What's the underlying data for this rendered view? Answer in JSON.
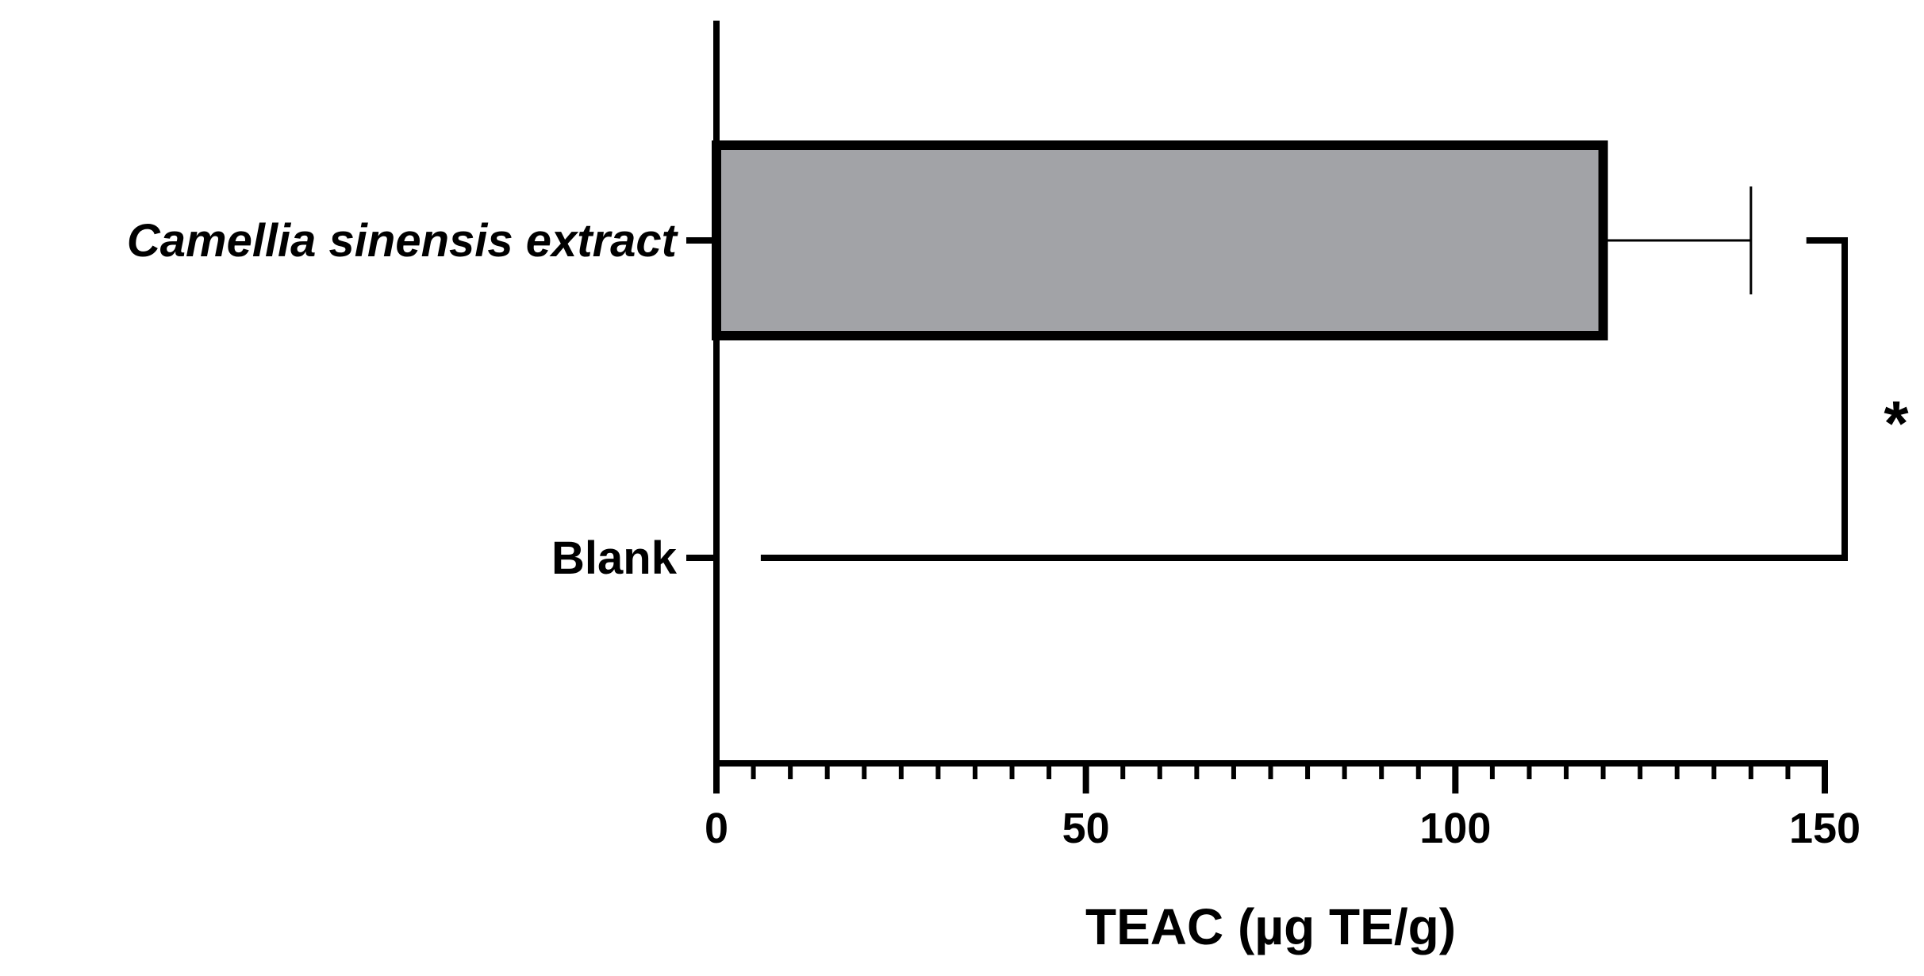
{
  "chart_data": {
    "type": "bar",
    "orientation": "horizontal",
    "categories": [
      "Camellia sinensis extract",
      "Blank"
    ],
    "values": [
      120,
      0
    ],
    "error_bars": [
      20,
      null
    ],
    "xlabel": "TEAC (µg TE/g)",
    "ylabel": "",
    "xlim": [
      0,
      150
    ],
    "x_ticks": [
      0,
      50,
      100,
      150
    ],
    "x_tick_labels": [
      "0",
      "50",
      "100",
      "150"
    ],
    "minor_tick_step": 5,
    "grid": false,
    "legend": "none",
    "annotations": [
      {
        "type": "significance",
        "text": "*",
        "between": [
          "Camellia sinensis extract",
          "Blank"
        ]
      }
    ],
    "colors": {
      "bar_fill": "#a2a3a7",
      "stroke": "#000000"
    }
  }
}
